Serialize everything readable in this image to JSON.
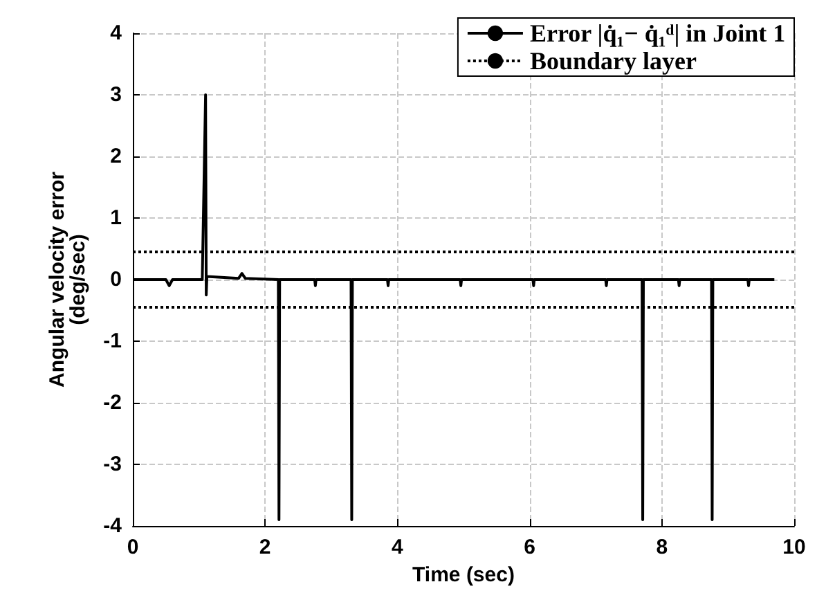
{
  "chart_data": {
    "type": "line",
    "xlabel": "Time (sec)",
    "ylabel": "Angular velocity error\n(deg/sec)",
    "xlim": [
      0,
      10
    ],
    "xticks": [
      0,
      2,
      4,
      6,
      8,
      10
    ],
    "ylim": [
      -4,
      4
    ],
    "yticks": [
      -4,
      -3,
      -2,
      -1,
      0,
      1,
      2,
      3,
      4
    ],
    "grid": true,
    "legend": "top right",
    "marker": "none",
    "series": [
      {
        "name": "Error |q̇₁− q̇₁ᵈ| in Joint 1",
        "color": "#000000",
        "line_style": "solid",
        "x": [
          0,
          0.5,
          0.55,
          0.6,
          1.05,
          1.1,
          1.11,
          1.12,
          1.6,
          1.65,
          1.7,
          2.2,
          2.21,
          2.22,
          2.75,
          2.76,
          2.77,
          3.3,
          3.31,
          3.32,
          3.85,
          3.86,
          3.87,
          4.95,
          4.96,
          4.97,
          6.05,
          6.06,
          6.07,
          7.15,
          7.16,
          7.17,
          7.7,
          7.71,
          7.72,
          8.25,
          8.26,
          8.27,
          8.75,
          8.76,
          8.77,
          9.3,
          9.31,
          9.32,
          9.7
        ],
        "values": [
          0,
          0,
          -0.1,
          0,
          0,
          3,
          -0.25,
          0.05,
          0.02,
          0.1,
          0.02,
          0,
          -3.9,
          0,
          0,
          -0.1,
          0,
          0,
          -3.9,
          0,
          0,
          -0.1,
          0,
          0,
          -0.1,
          0,
          0,
          -0.1,
          0,
          0,
          -0.1,
          0,
          0,
          -3.9,
          0,
          0,
          -0.1,
          0,
          0,
          -3.9,
          0,
          0,
          -0.1,
          0,
          0
        ]
      },
      {
        "name": "Boundary layer",
        "color": "#000000",
        "line_style": "dotted",
        "x": [
          0,
          10
        ],
        "values": [
          0.45,
          0.45
        ]
      },
      {
        "color": "#000000",
        "line_style": "dotted",
        "x": [
          0,
          10
        ],
        "values": [
          -0.45,
          -0.45
        ]
      }
    ]
  }
}
